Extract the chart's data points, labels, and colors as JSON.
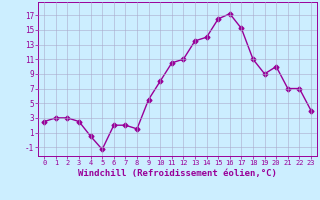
{
  "x": [
    0,
    1,
    2,
    3,
    4,
    5,
    6,
    7,
    8,
    9,
    10,
    11,
    12,
    13,
    14,
    15,
    16,
    17,
    18,
    19,
    20,
    21,
    22,
    23
  ],
  "y": [
    2.5,
    3.0,
    3.0,
    2.5,
    0.5,
    -1.3,
    2.0,
    2.0,
    1.5,
    5.5,
    8.0,
    10.5,
    11.0,
    13.5,
    14.0,
    16.5,
    17.2,
    15.2,
    11.0,
    9.0,
    10.0,
    7.0,
    7.0,
    4.0
  ],
  "line_color": "#990099",
  "marker": "D",
  "markersize": 2.5,
  "linewidth": 1.0,
  "xlabel": "Windchill (Refroidissement éolien,°C)",
  "xlabel_fontsize": 6.5,
  "bg_color": "#cceeff",
  "grid_color": "#aaaacc",
  "yticks": [
    -1,
    1,
    3,
    5,
    7,
    9,
    11,
    13,
    15,
    17
  ],
  "ylim": [
    -2.2,
    18.8
  ],
  "xlim": [
    -0.5,
    23.5
  ],
  "xticks": [
    0,
    1,
    2,
    3,
    4,
    5,
    6,
    7,
    8,
    9,
    10,
    11,
    12,
    13,
    14,
    15,
    16,
    17,
    18,
    19,
    20,
    21,
    22,
    23
  ],
  "tick_fontsize": 5.0,
  "y_tick_fontsize": 5.5
}
